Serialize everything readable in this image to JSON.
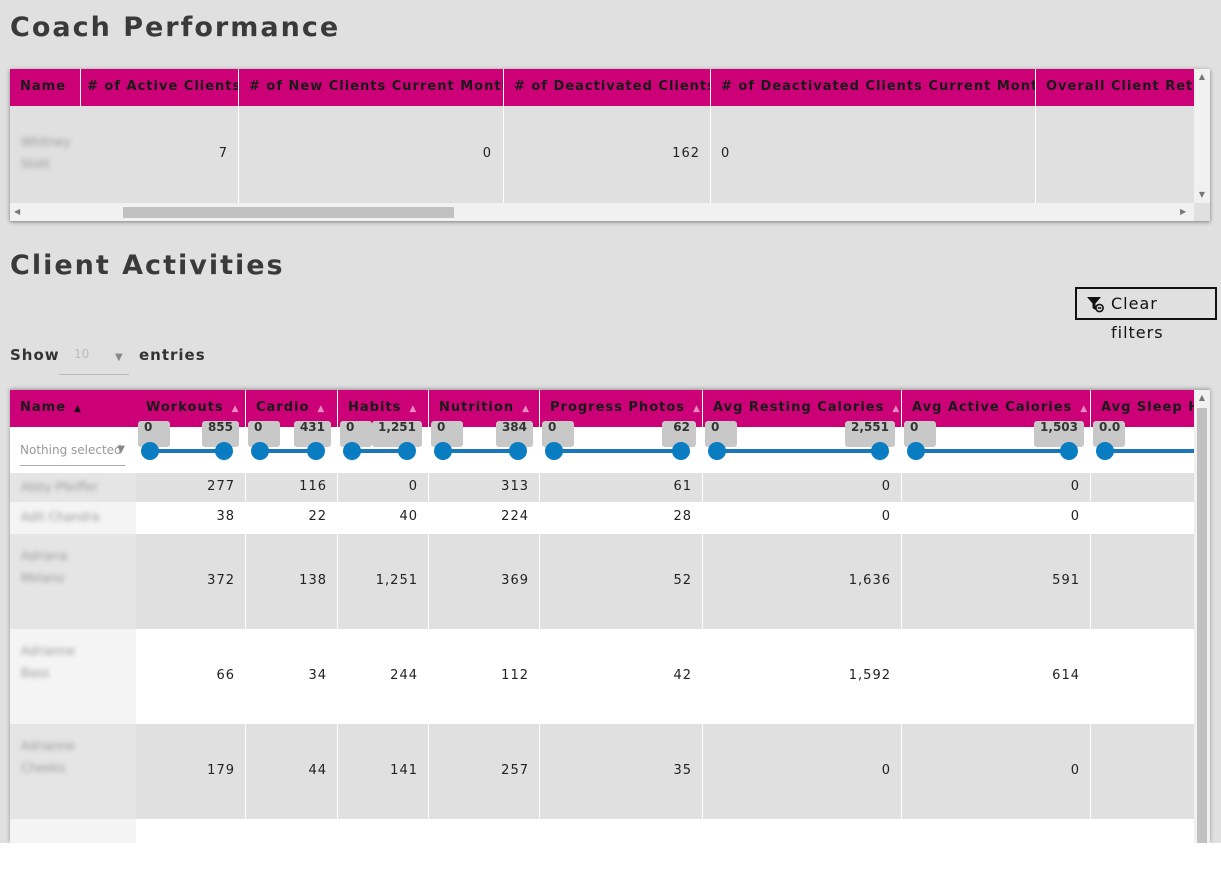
{
  "coach_section": {
    "title": "Coach Performance",
    "columns": [
      "Name",
      "# of Active Clients",
      "# of New Clients Current Month",
      "# of Deactivated Clients",
      "# of Deactivated Clients Current Month",
      "Overall Client Rete"
    ],
    "row": {
      "name": "Whitney Stott",
      "active": "7",
      "new": "0",
      "deactivated": "162",
      "deactivated_month": "0",
      "retention": ""
    }
  },
  "client_section": {
    "title": "Client Activities",
    "clear_filters_label": "Clear filters",
    "show_label": "Show",
    "entries_value": "10",
    "entries_label": "entries",
    "columns": [
      {
        "label": "Name"
      },
      {
        "label": "Workouts"
      },
      {
        "label": "Cardio"
      },
      {
        "label": "Habits"
      },
      {
        "label": "Nutrition"
      },
      {
        "label": "Progress Photos"
      },
      {
        "label": "Avg Resting Calories"
      },
      {
        "label": "Avg Active Calories"
      },
      {
        "label": "Avg Sleep H"
      }
    ],
    "name_filter_placeholder": "Nothing selected",
    "ranges": [
      {
        "min": "0",
        "max": "855"
      },
      {
        "min": "0",
        "max": "431"
      },
      {
        "min": "0",
        "max": "1,251"
      },
      {
        "min": "0",
        "max": "384"
      },
      {
        "min": "0",
        "max": "62"
      },
      {
        "min": "0",
        "max": "2,551"
      },
      {
        "min": "0",
        "max": "1,503"
      },
      {
        "min": "0.0",
        "max": ""
      }
    ],
    "rows": [
      {
        "name": "Abby Pfeiffer",
        "values": [
          "277",
          "116",
          "0",
          "313",
          "61",
          "0",
          "0"
        ]
      },
      {
        "name": "Adit Chandra",
        "values": [
          "38",
          "22",
          "40",
          "224",
          "28",
          "0",
          "0"
        ]
      },
      {
        "name": "Adriana Melano",
        "values": [
          "372",
          "138",
          "1,251",
          "369",
          "52",
          "1,636",
          "591"
        ]
      },
      {
        "name": "Adrianne Bass",
        "values": [
          "66",
          "34",
          "244",
          "112",
          "42",
          "1,592",
          "614"
        ]
      },
      {
        "name": "Adrianne Cheeks",
        "values": [
          "179",
          "44",
          "141",
          "257",
          "35",
          "0",
          "0"
        ]
      }
    ]
  },
  "colors": {
    "header": "#cc0077",
    "background": "#e0e0e0",
    "slider": "#0a7dc2"
  }
}
